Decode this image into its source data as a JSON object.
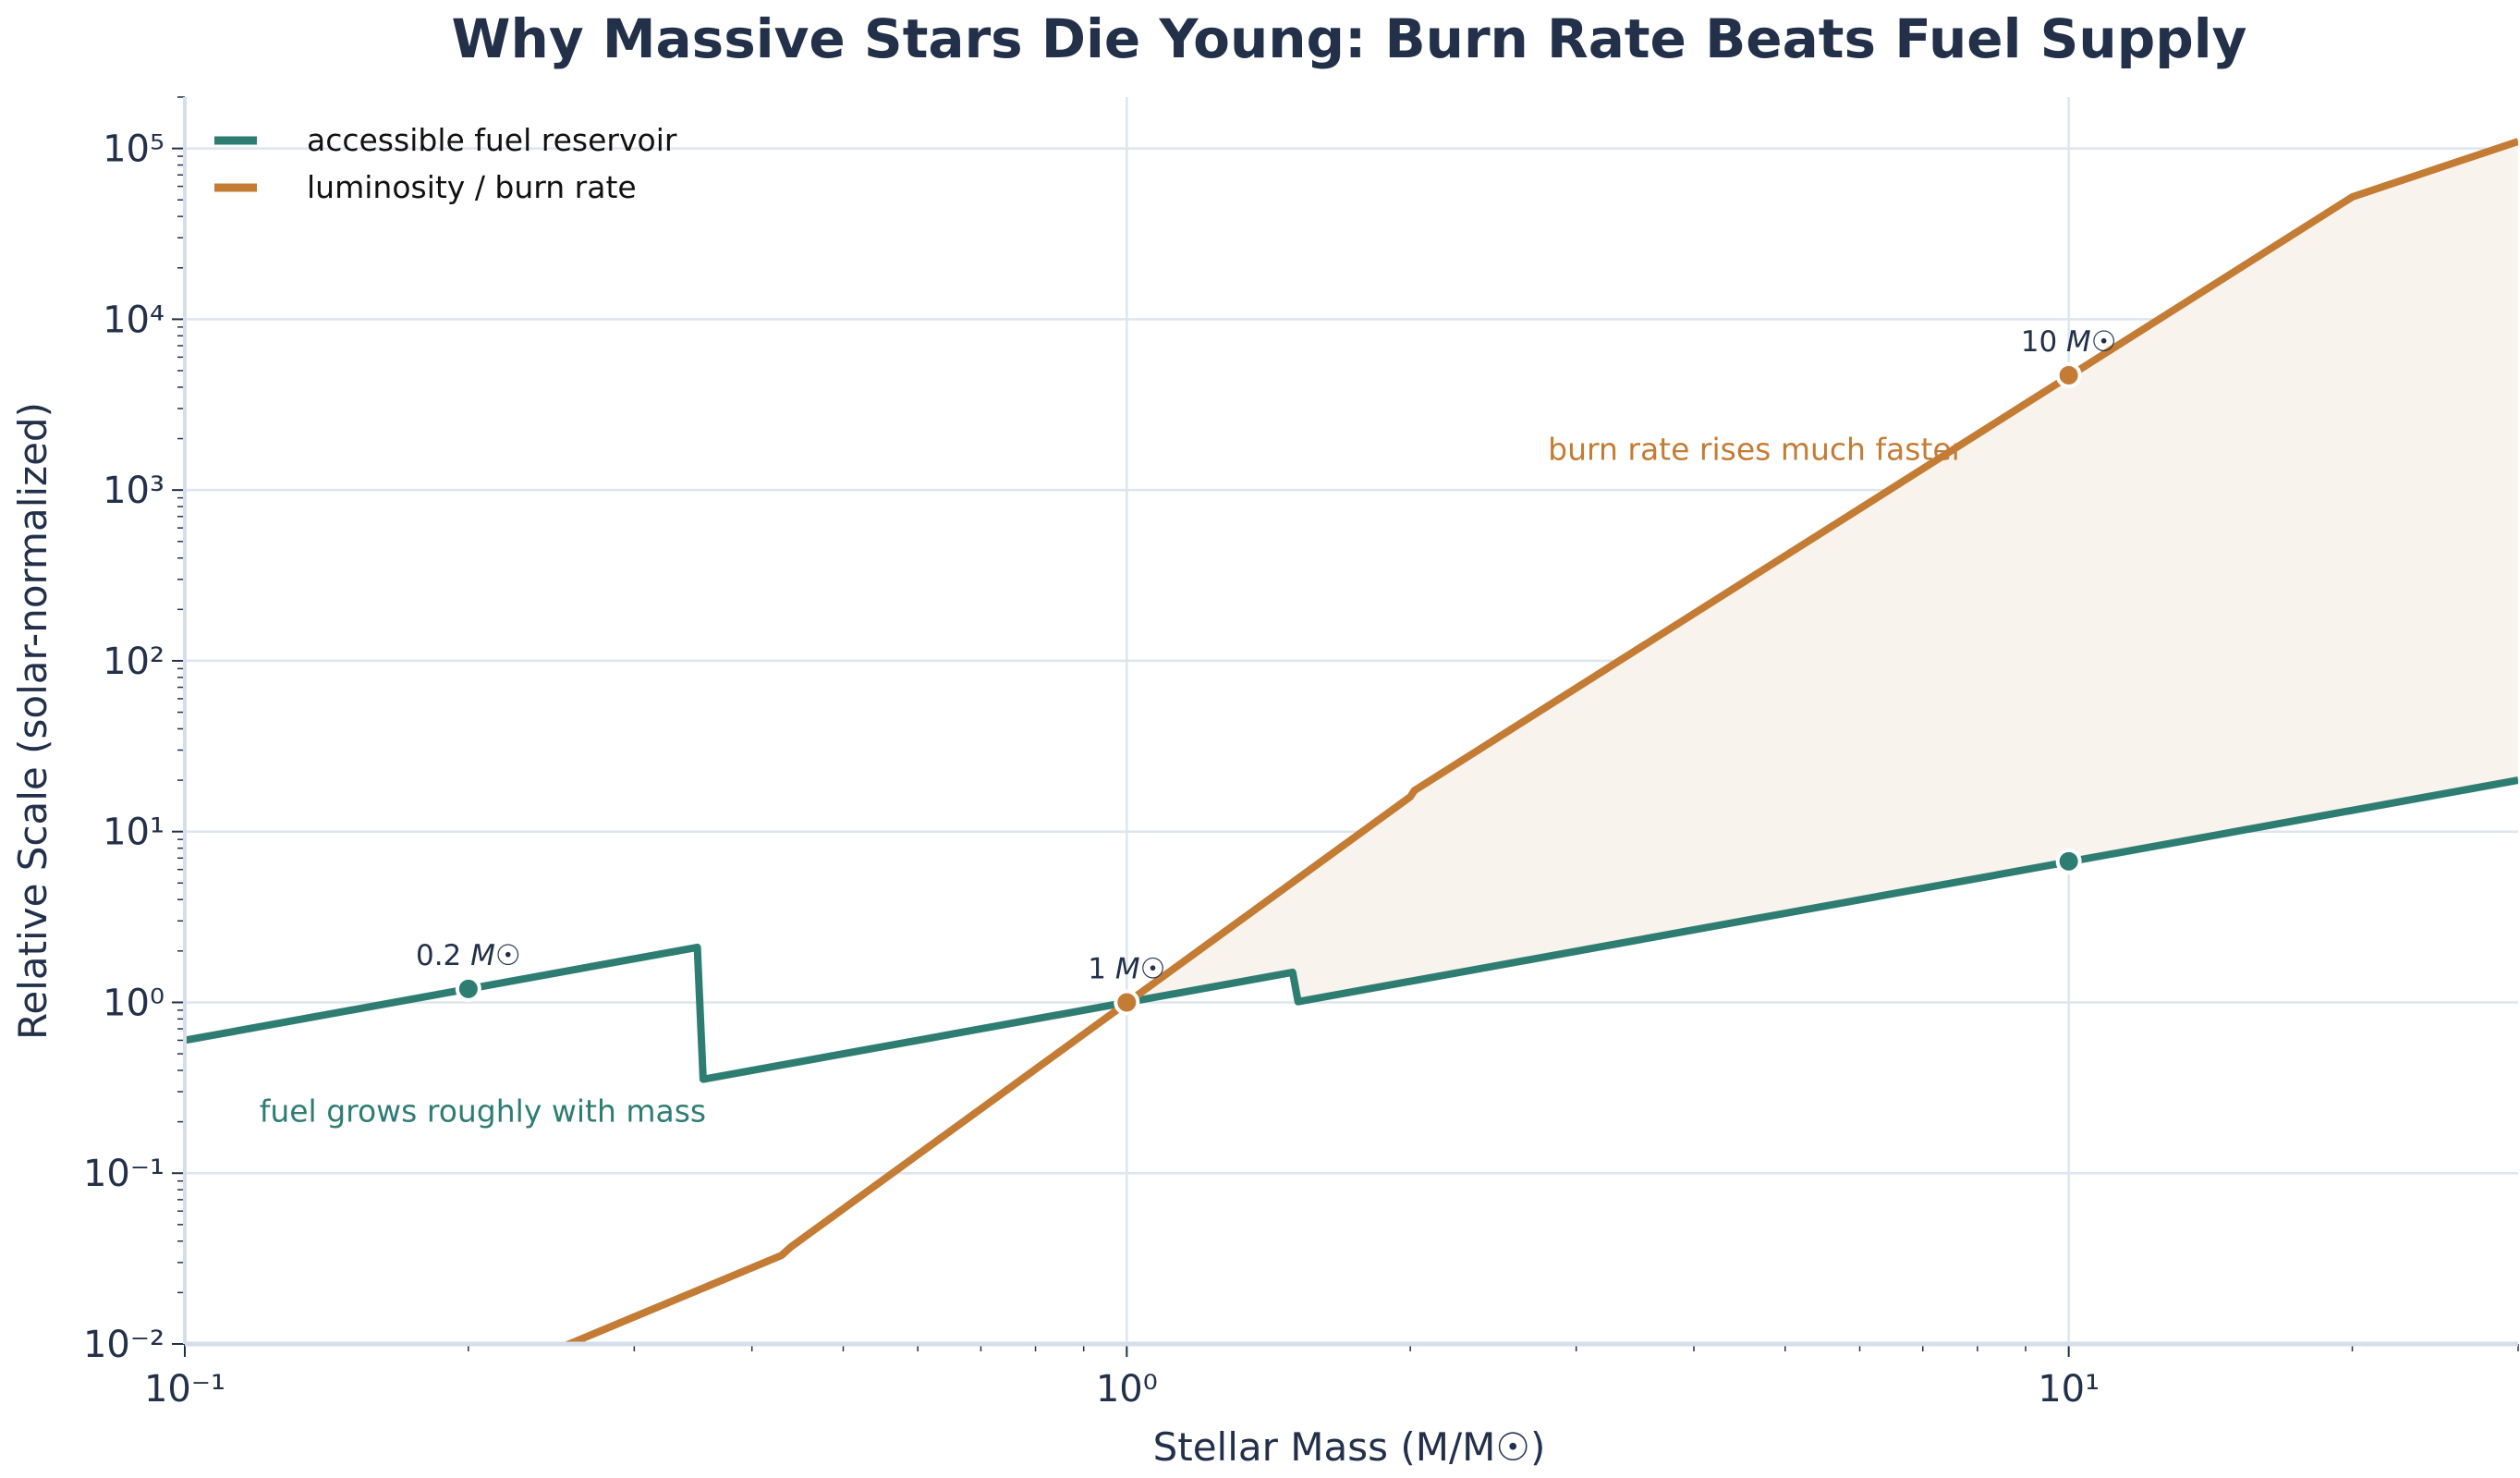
{
  "chart_data": {
    "type": "line",
    "title": "Why Massive Stars Die Young: Burn Rate Beats Fuel Supply",
    "xlabel": "Stellar Mass (M/M☉)",
    "ylabel": "Relative Scale (solar-normalized)",
    "xscale": "log",
    "yscale": "log",
    "xlim": [
      0.1,
      30
    ],
    "ylim": [
      0.01,
      200000
    ],
    "xticks": [
      {
        "value": 0.1,
        "label": "10⁻¹"
      },
      {
        "value": 1,
        "label": "10⁰"
      },
      {
        "value": 10,
        "label": "10¹"
      }
    ],
    "yticks": [
      {
        "value": 0.01,
        "label": "10⁻²"
      },
      {
        "value": 0.1,
        "label": "10⁻¹"
      },
      {
        "value": 1,
        "label": "10⁰"
      },
      {
        "value": 10,
        "label": "10¹"
      },
      {
        "value": 100,
        "label": "10²"
      },
      {
        "value": 1000,
        "label": "10³"
      },
      {
        "value": 10000,
        "label": "10⁴"
      },
      {
        "value": 100000,
        "label": "10⁵"
      }
    ],
    "grid": true,
    "legend_position": "top-left",
    "series": [
      {
        "name": "accessible fuel reservoir",
        "color": "#2e7d73",
        "x": [
          0.1,
          0.35,
          0.355,
          1.5,
          1.52,
          30
        ],
        "y": [
          0.6,
          2.1,
          0.355,
          1.5,
          1.01,
          20
        ]
      },
      {
        "name": "luminosity / burn rate",
        "color": "#c47c35",
        "x": [
          0.1,
          0.43,
          0.44,
          2.0,
          2.02,
          20,
          30
        ],
        "y": [
          0.00115,
          0.033,
          0.037,
          16,
          17.4,
          52000,
          110000
        ]
      }
    ],
    "shaded_region": {
      "between": [
        "luminosity / burn rate",
        "accessible fuel reservoir"
      ],
      "x_from": 1,
      "x_to": 30,
      "color": "#f8f3ed"
    },
    "markers": [
      {
        "series": "accessible fuel reservoir",
        "x": 0.2,
        "y": 1.2,
        "label": "0.2",
        "color": "#2e7d73"
      },
      {
        "series": "accessible fuel reservoir",
        "x": 10,
        "y": 6.7,
        "label": "",
        "color": "#2e7d73"
      },
      {
        "series": "luminosity / burn rate",
        "x": 1,
        "y": 1,
        "label": "1",
        "color": "#c47c35"
      },
      {
        "series": "luminosity / burn rate",
        "x": 10,
        "y": 4700,
        "label": "10",
        "color": "#c47c35"
      }
    ],
    "marker_unit": "M☉",
    "annotations": [
      {
        "text": "fuel grows roughly with mass",
        "x": 0.12,
        "y": 0.2,
        "color": "#2e7d73"
      },
      {
        "text": "burn rate rises much faster",
        "x": 2.8,
        "y": 1500,
        "color": "#c47c35"
      }
    ]
  }
}
